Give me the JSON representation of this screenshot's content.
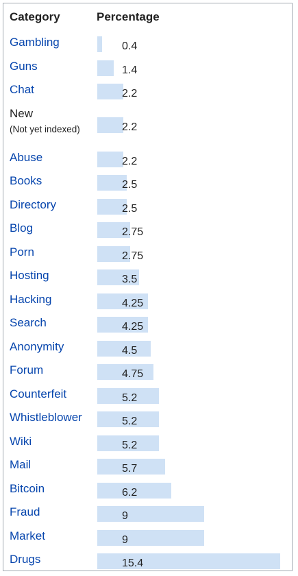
{
  "chart_data": {
    "type": "table",
    "headers": {
      "category": "Category",
      "percentage": "Percentage"
    },
    "max_value": 15.4,
    "rows": [
      {
        "category": "Gambling",
        "value": 0.4,
        "display": "0.4",
        "link": true
      },
      {
        "category": "Guns",
        "value": 1.4,
        "display": "1.4",
        "link": true
      },
      {
        "category": "Chat",
        "value": 2.2,
        "display": "2.2",
        "link": true
      },
      {
        "category": "New",
        "sublabel": "(Not yet indexed)",
        "value": 2.2,
        "display": "2.2",
        "link": false
      },
      {
        "category": "Abuse",
        "value": 2.2,
        "display": "2.2",
        "link": true
      },
      {
        "category": "Books",
        "value": 2.5,
        "display": "2.5",
        "link": true
      },
      {
        "category": "Directory",
        "value": 2.5,
        "display": "2.5",
        "link": true
      },
      {
        "category": "Blog",
        "value": 2.75,
        "display": "2.75",
        "link": true
      },
      {
        "category": "Porn",
        "value": 2.75,
        "display": "2.75",
        "link": true
      },
      {
        "category": "Hosting",
        "value": 3.5,
        "display": "3.5",
        "link": true
      },
      {
        "category": "Hacking",
        "value": 4.25,
        "display": "4.25",
        "link": true
      },
      {
        "category": "Search",
        "value": 4.25,
        "display": "4.25",
        "link": true
      },
      {
        "category": "Anonymity",
        "value": 4.5,
        "display": "4.5",
        "link": true
      },
      {
        "category": "Forum",
        "value": 4.75,
        "display": "4.75",
        "link": true
      },
      {
        "category": "Counterfeit",
        "value": 5.2,
        "display": "5.2",
        "link": true
      },
      {
        "category": "Whistleblower",
        "value": 5.2,
        "display": "5.2",
        "link": true
      },
      {
        "category": "Wiki",
        "value": 5.2,
        "display": "5.2",
        "link": true
      },
      {
        "category": "Mail",
        "value": 5.7,
        "display": "5.7",
        "link": true
      },
      {
        "category": "Bitcoin",
        "value": 6.2,
        "display": "6.2",
        "link": true
      },
      {
        "category": "Fraud",
        "value": 9,
        "display": "9",
        "link": true
      },
      {
        "category": "Market",
        "value": 9,
        "display": "9",
        "link": true
      },
      {
        "category": "Drugs",
        "value": 15.4,
        "display": "15.4",
        "link": true
      }
    ]
  },
  "colors": {
    "link": "#0645ad",
    "bar": "#cfe1f5",
    "text": "#222222",
    "border": "#a2a9b1"
  }
}
